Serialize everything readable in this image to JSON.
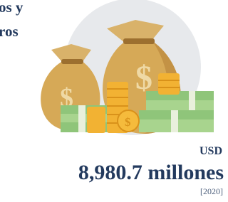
{
  "title_lines": [
    "os y",
    "ros"
  ],
  "currency": "USD",
  "amount": "8,980.7 millones",
  "year": "[2020]"
}
